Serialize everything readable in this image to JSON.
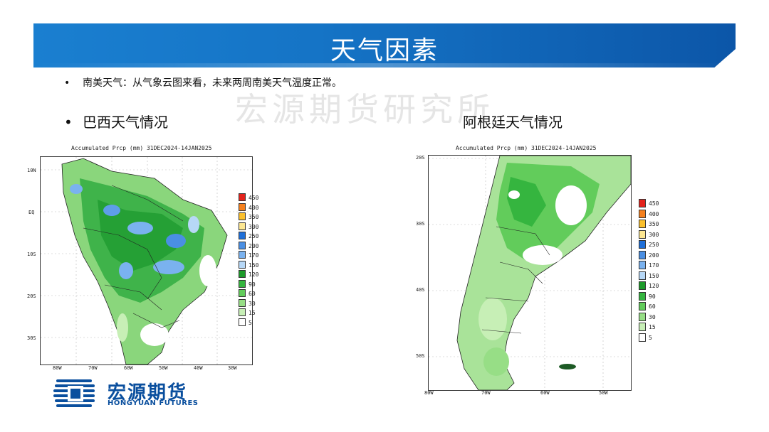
{
  "slide": {
    "title": "天气因素"
  },
  "bullets": {
    "summary": "南美天气：从气象云图来看，未来两周南美天气温度正常。",
    "brazil_heading": "巴西天气情况",
    "argentina_heading": "阿根廷天气情况",
    "bullet_mark": "•"
  },
  "watermark": "宏源期货研究所",
  "maps": {
    "brazil": {
      "title": "Accumulated Prcp (mm) 31DEC2024-14JAN2025",
      "lat_labels": [
        "10N",
        "EQ",
        "10S",
        "20S",
        "30S"
      ],
      "lon_labels": [
        "80W",
        "70W",
        "60W",
        "50W",
        "40W",
        "30W"
      ]
    },
    "argentina": {
      "title": "Accumulated Prcp (mm) 31DEC2024-14JAN2025",
      "lat_labels": [
        "20S",
        "30S",
        "40S",
        "50S"
      ],
      "lon_labels": [
        "80W",
        "70W",
        "60W",
        "50W"
      ]
    }
  },
  "legend": {
    "levels": [
      "450",
      "400",
      "350",
      "300",
      "250",
      "200",
      "170",
      "150",
      "120",
      "90",
      "60",
      "30",
      "15",
      "5"
    ],
    "colors": [
      "#e3231c",
      "#f5801e",
      "#fbc02d",
      "#fde792",
      "#1f6fd8",
      "#4a8fe3",
      "#7ab2ef",
      "#b7d8f7",
      "#1d9a2a",
      "#35b53f",
      "#62cc5b",
      "#97de86",
      "#c7efb6",
      "#ffffff"
    ]
  },
  "logo": {
    "name_cn": "宏源期货",
    "name_en": "HONGYUAN FUTURES",
    "color": "#0a4f9e"
  }
}
